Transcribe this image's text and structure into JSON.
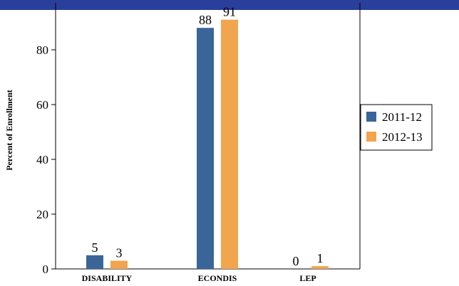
{
  "chart_data": {
    "type": "bar",
    "title": "",
    "xlabel": "",
    "ylabel": "Percent of Enrollment",
    "categories": [
      "DISABILITY",
      "ECONDIS",
      "LEP"
    ],
    "series": [
      {
        "name": "2011-12",
        "values": [
          5,
          88,
          0
        ],
        "labels": [
          "5",
          "88",
          "0"
        ],
        "color": "#3a6598"
      },
      {
        "name": "2012-13",
        "values": [
          3,
          91,
          1
        ],
        "labels": [
          "3",
          "91",
          "1"
        ],
        "color": "#f0a54e"
      }
    ],
    "yticks": [
      "0",
      "20",
      "40",
      "60",
      "80"
    ],
    "ylim": [
      0,
      93
    ],
    "grid": false,
    "legend_position": "right"
  },
  "colors": {
    "header_band": "#2a3e9b"
  }
}
